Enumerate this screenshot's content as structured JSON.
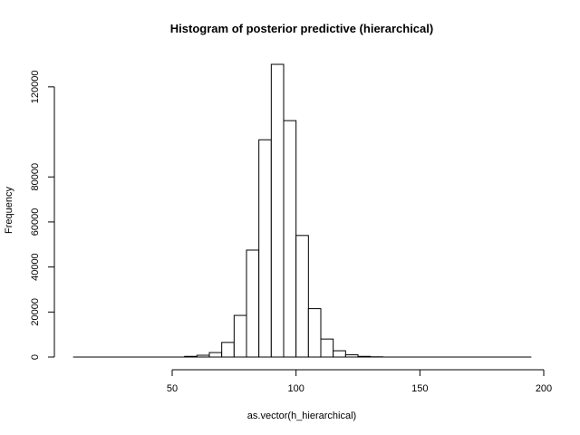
{
  "chart_data": {
    "type": "bar",
    "title": "Histogram of posterior predictive (hierarchical)",
    "xlabel": "as.vector(h_hierarchical)",
    "ylabel": "Frequency",
    "xlim": [
      10,
      195
    ],
    "ylim": [
      0,
      130000
    ],
    "x_ticks": [
      50,
      100,
      150,
      200
    ],
    "y_ticks": [
      0,
      20000,
      40000,
      60000,
      80000,
      120000
    ],
    "bin_width": 5,
    "bins": [
      {
        "start": 55,
        "end": 60,
        "count": 300
      },
      {
        "start": 60,
        "end": 65,
        "count": 800
      },
      {
        "start": 65,
        "end": 70,
        "count": 2000
      },
      {
        "start": 70,
        "end": 75,
        "count": 6500
      },
      {
        "start": 75,
        "end": 80,
        "count": 18500
      },
      {
        "start": 80,
        "end": 85,
        "count": 47500
      },
      {
        "start": 85,
        "end": 90,
        "count": 96500
      },
      {
        "start": 90,
        "end": 95,
        "count": 130000
      },
      {
        "start": 95,
        "end": 100,
        "count": 105000
      },
      {
        "start": 100,
        "end": 105,
        "count": 54000
      },
      {
        "start": 105,
        "end": 110,
        "count": 21500
      },
      {
        "start": 110,
        "end": 115,
        "count": 8000
      },
      {
        "start": 115,
        "end": 120,
        "count": 2800
      },
      {
        "start": 120,
        "end": 125,
        "count": 1000
      },
      {
        "start": 125,
        "end": 130,
        "count": 300
      },
      {
        "start": 130,
        "end": 135,
        "count": 100
      },
      {
        "start": 135,
        "end": 195,
        "count": 0
      }
    ],
    "baseline_range": [
      10,
      195
    ],
    "grid": false,
    "colors": {
      "bar_fill": "#ffffff",
      "bar_stroke": "#000000"
    }
  }
}
